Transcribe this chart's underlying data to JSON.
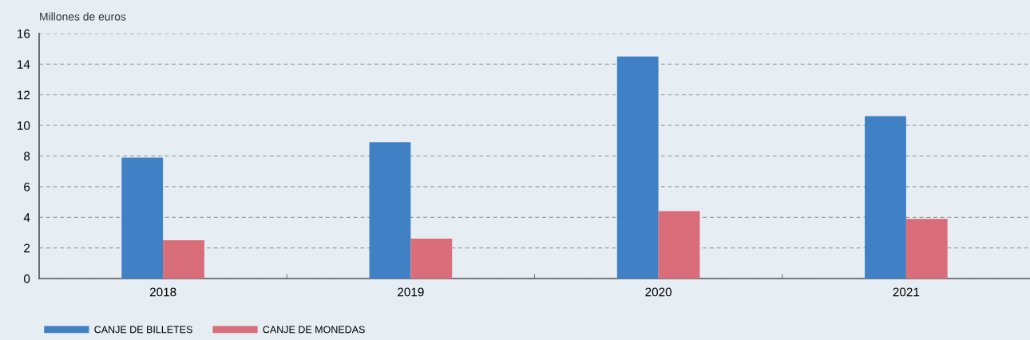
{
  "chart_data": {
    "type": "bar",
    "ylabel": "Millones de euros",
    "categories": [
      "2018",
      "2019",
      "2020",
      "2021"
    ],
    "series": [
      {
        "name": "CANJE DE BILLETES",
        "color": "#4080c4",
        "values": [
          7.9,
          8.9,
          14.5,
          10.6
        ]
      },
      {
        "name": "CANJE DE MONEDAS",
        "color": "#d96d7a",
        "values": [
          2.5,
          2.6,
          4.4,
          3.9
        ]
      }
    ],
    "ylim": [
      0,
      16
    ],
    "yticks": [
      0,
      2,
      4,
      6,
      8,
      10,
      12,
      14,
      16
    ],
    "grid": "y",
    "legend": "bottom left"
  }
}
